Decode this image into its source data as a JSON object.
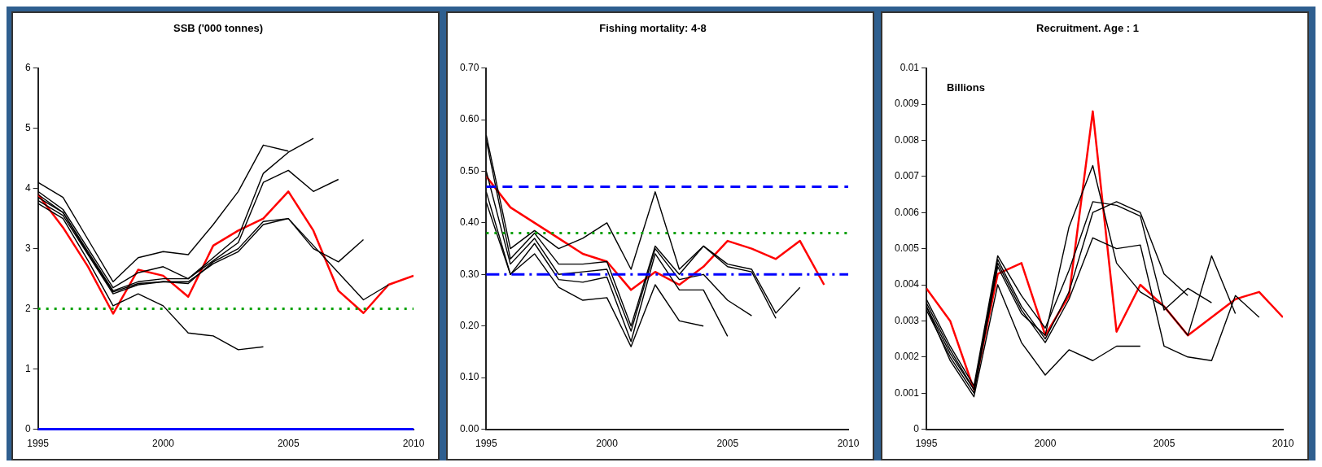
{
  "chart_data": [
    {
      "type": "line",
      "title": "SSB ('000 tonnes)",
      "x": [
        1995,
        1996,
        1997,
        1998,
        1999,
        2000,
        2001,
        2002,
        2003,
        2004,
        2005,
        2006,
        2007,
        2008,
        2009,
        2010
      ],
      "xlim": [
        1995,
        2010
      ],
      "xticks": [
        1995,
        2000,
        2005,
        2010
      ],
      "ylim": [
        0,
        6
      ],
      "yticks": [
        0,
        1,
        2,
        3,
        4,
        5,
        6
      ],
      "grid": false,
      "legend": false,
      "series": [
        {
          "color": "#000000",
          "values": [
            3.75,
            3.5,
            2.8,
            2.05,
            2.25,
            2.05,
            1.6,
            1.55,
            1.32,
            1.37,
            null,
            null,
            null,
            null,
            null,
            null
          ]
        },
        {
          "color": "#000000",
          "values": [
            4.1,
            3.85,
            3.15,
            2.45,
            2.85,
            2.95,
            2.9,
            3.4,
            3.95,
            4.72,
            4.62,
            null,
            null,
            null,
            null,
            null
          ]
        },
        {
          "color": "#000000",
          "values": [
            3.95,
            3.65,
            3.0,
            2.35,
            2.6,
            2.7,
            2.5,
            2.85,
            3.2,
            4.25,
            4.6,
            4.83,
            null,
            null,
            null,
            null
          ]
        },
        {
          "color": "#000000",
          "values": [
            3.9,
            3.6,
            2.95,
            2.3,
            2.45,
            2.5,
            2.5,
            2.8,
            3.1,
            4.1,
            4.3,
            3.95,
            4.15,
            null,
            null,
            null
          ]
        },
        {
          "color": "#000000",
          "values": [
            3.8,
            3.55,
            2.9,
            2.25,
            2.4,
            2.45,
            2.45,
            2.75,
            2.95,
            3.4,
            3.5,
            3.0,
            2.78,
            3.15,
            null,
            null
          ]
        },
        {
          "color": "#000000",
          "values": [
            3.85,
            3.6,
            2.92,
            2.28,
            2.42,
            2.45,
            2.42,
            2.78,
            3.0,
            3.45,
            3.5,
            3.05,
            2.6,
            2.15,
            2.4,
            null
          ]
        },
        {
          "color": "#ff0000",
          "values": [
            3.9,
            3.35,
            2.7,
            1.92,
            2.65,
            2.55,
            2.2,
            3.05,
            3.3,
            3.5,
            3.95,
            3.3,
            2.3,
            1.93,
            2.4,
            2.55
          ]
        }
      ],
      "ref_lines": [
        {
          "axis": "y",
          "value": 2,
          "color": "#00a000",
          "line_style": "dotted"
        },
        {
          "axis": "y",
          "value": 0,
          "color": "#0000ff",
          "line_style": "solid"
        }
      ]
    },
    {
      "type": "line",
      "title": "Fishing mortality: 4-8",
      "x": [
        1995,
        1996,
        1997,
        1998,
        1999,
        2000,
        2001,
        2002,
        2003,
        2004,
        2005,
        2006,
        2007,
        2008,
        2009
      ],
      "xlim": [
        1995,
        2010
      ],
      "xticks": [
        1995,
        2000,
        2005,
        2010
      ],
      "ylim": [
        0,
        0.7
      ],
      "yticks": [
        {
          "value": 0,
          "label": "0.00"
        },
        {
          "value": 0.1,
          "label": "0.10"
        },
        {
          "value": 0.2,
          "label": "0.20"
        },
        {
          "value": 0.3,
          "label": "0.30"
        },
        {
          "value": 0.4,
          "label": "0.40"
        },
        {
          "value": 0.5,
          "label": "0.50"
        },
        {
          "value": 0.6,
          "label": "0.60"
        },
        {
          "value": 0.7,
          "label": "0.70"
        }
      ],
      "grid": false,
      "legend": false,
      "series": [
        {
          "color": "#000000",
          "values": [
            0.44,
            0.3,
            0.34,
            0.275,
            0.25,
            0.255,
            0.16,
            0.28,
            0.21,
            0.2,
            null,
            null,
            null,
            null,
            null
          ]
        },
        {
          "color": "#000000",
          "values": [
            0.46,
            0.3,
            0.36,
            0.29,
            0.285,
            0.295,
            0.17,
            0.34,
            0.27,
            0.27,
            0.18,
            null,
            null,
            null,
            null
          ]
        },
        {
          "color": "#000000",
          "values": [
            0.5,
            0.32,
            0.37,
            0.3,
            0.305,
            0.31,
            0.19,
            0.35,
            0.29,
            0.3,
            0.25,
            0.22,
            null,
            null,
            null
          ]
        },
        {
          "color": "#000000",
          "values": [
            0.56,
            0.33,
            0.38,
            0.32,
            0.32,
            0.325,
            0.2,
            0.355,
            0.3,
            0.355,
            0.315,
            0.305,
            0.215,
            null,
            null
          ]
        },
        {
          "color": "#000000",
          "values": [
            0.57,
            0.35,
            0.385,
            0.35,
            0.37,
            0.4,
            0.31,
            0.46,
            0.31,
            0.355,
            0.32,
            0.31,
            0.225,
            0.275,
            null
          ]
        },
        {
          "color": "#ff0000",
          "values": [
            0.49,
            0.43,
            0.4,
            0.37,
            0.34,
            0.325,
            0.27,
            0.305,
            0.28,
            0.315,
            0.365,
            0.35,
            0.33,
            0.365,
            0.28
          ]
        }
      ],
      "ref_lines": [
        {
          "axis": "y",
          "value": 0.47,
          "color": "#0000ff",
          "line_style": "dashed"
        },
        {
          "axis": "y",
          "value": 0.38,
          "color": "#00a000",
          "line_style": "dotted"
        },
        {
          "axis": "y",
          "value": 0.3,
          "color": "#0000ff",
          "line_style": "dashdot"
        }
      ]
    },
    {
      "type": "line",
      "title": "Recruitment. Age : 1",
      "annotations": [
        "Billions"
      ],
      "x": [
        1995,
        1996,
        1997,
        1998,
        1999,
        2000,
        2001,
        2002,
        2003,
        2004,
        2005,
        2006,
        2007,
        2008,
        2009,
        2010
      ],
      "xlim": [
        1995,
        2010
      ],
      "xticks": [
        1995,
        2000,
        2005,
        2010
      ],
      "ylim": [
        0,
        0.01
      ],
      "yticks": [
        0,
        0.001,
        0.002,
        0.003,
        0.004,
        0.005,
        0.006,
        0.007,
        0.008,
        0.009,
        0.01
      ],
      "grid": false,
      "legend": false,
      "series": [
        {
          "color": "#000000",
          "values": [
            0.0034,
            0.0019,
            0.0009,
            0.004,
            0.0024,
            0.0015,
            0.0022,
            0.0019,
            0.0023,
            0.0023,
            null,
            null,
            null,
            null,
            null,
            null
          ]
        },
        {
          "color": "#000000",
          "values": [
            0.0035,
            0.0022,
            0.0011,
            0.0046,
            0.0033,
            0.0024,
            0.0036,
            0.0053,
            0.005,
            0.0051,
            0.0023,
            0.002,
            0.0019,
            0.0037,
            0.0031,
            null
          ]
        },
        {
          "color": "#000000",
          "values": [
            0.0034,
            0.0021,
            0.0011,
            0.0047,
            0.0034,
            0.0025,
            0.0038,
            0.006,
            0.0063,
            0.006,
            0.0043,
            0.0037,
            null,
            null,
            null,
            null
          ]
        },
        {
          "color": "#000000",
          "values": [
            0.0036,
            0.0023,
            0.0012,
            0.0048,
            0.0037,
            0.0028,
            0.0044,
            0.0063,
            0.0062,
            0.0059,
            0.0033,
            0.0039,
            0.0035,
            null,
            null,
            null
          ]
        },
        {
          "color": "#000000",
          "values": [
            0.0033,
            0.002,
            0.001,
            0.0045,
            0.0032,
            0.0026,
            0.0056,
            0.0073,
            0.0046,
            0.0038,
            0.0034,
            0.0026,
            0.0048,
            0.0032,
            null,
            null
          ]
        },
        {
          "color": "#ff0000",
          "values": [
            0.0039,
            0.003,
            0.0011,
            0.0043,
            0.0046,
            0.0026,
            0.0037,
            0.0088,
            0.0027,
            0.004,
            0.0034,
            0.0026,
            0.0031,
            0.0036,
            0.0038,
            0.0031
          ]
        }
      ]
    }
  ]
}
